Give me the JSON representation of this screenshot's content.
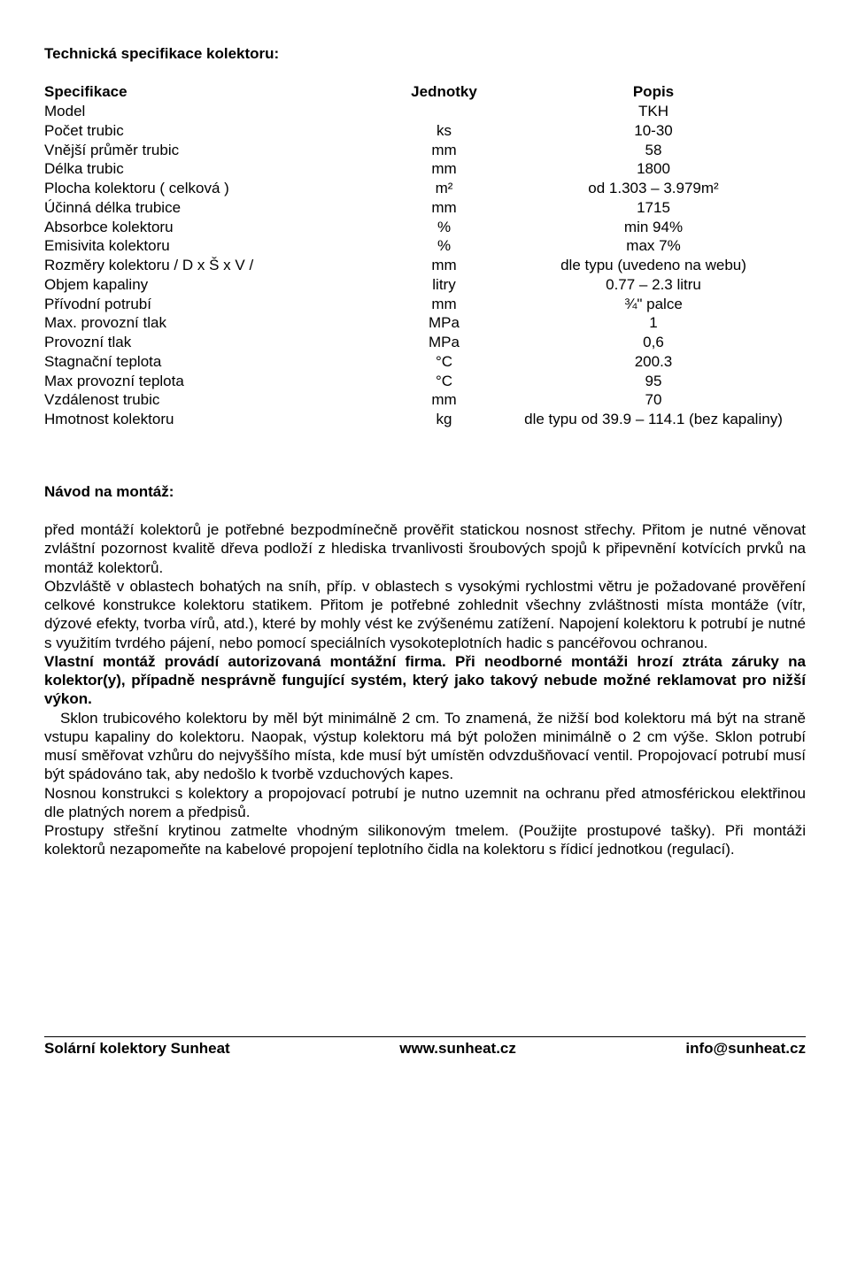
{
  "title": "Technická specifikace kolektoru:",
  "spec": {
    "head": {
      "c1": "Specifikace",
      "c2": "Jednotky",
      "c3": "Popis"
    },
    "rows": [
      {
        "c1": "Model",
        "c2": "",
        "c3": "TKH"
      },
      {
        "c1": "Počet trubic",
        "c2": "ks",
        "c3": "10-30"
      },
      {
        "c1": "Vnější průměr trubic",
        "c2": "mm",
        "c3": "58"
      },
      {
        "c1": "Délka trubic",
        "c2": "mm",
        "c3": "1800"
      },
      {
        "c1": "Plocha kolektoru ( celková )",
        "c2": "m²",
        "c3": "od 1.303 – 3.979m²"
      },
      {
        "c1": "Účinná délka trubice",
        "c2": "mm",
        "c3": "1715"
      },
      {
        "c1": "Absorbce kolektoru",
        "c2": "%",
        "c3": "min 94%"
      },
      {
        "c1": "Emisivita kolektoru",
        "c2": "%",
        "c3": "max 7%"
      },
      {
        "c1": "Rozměry kolektoru / D x Š x V /",
        "c2": "mm",
        "c3": "dle typu (uvedeno na webu)"
      },
      {
        "c1": "Objem kapaliny",
        "c2": "litry",
        "c3": "0.77 – 2.3 litru"
      },
      {
        "c1": "Přívodní potrubí",
        "c2": "mm",
        "c3": "¾\" palce"
      },
      {
        "c1": "Max. provozní tlak",
        "c2": "MPa",
        "c3": "1"
      },
      {
        "c1": "Provozní tlak",
        "c2": "MPa",
        "c3": "0,6"
      },
      {
        "c1": "Stagnační teplota",
        "c2": "°C",
        "c3": "200.3"
      },
      {
        "c1": "Max provozní teplota",
        "c2": "°C",
        "c3": "95"
      },
      {
        "c1": "Vzdálenost trubic",
        "c2": "mm",
        "c3": "70"
      },
      {
        "c1": "Hmotnost kolektoru",
        "c2": "kg",
        "c3": "dle typu od 39.9 – 114.1 (bez kapaliny)"
      }
    ]
  },
  "section_title": "Návod na montáž:",
  "p1": "před montáží kolektorů je potřebné bezpodmínečně prověřit statickou nosnost střechy. Přitom je nutné věnovat zvláštní pozornost kvalitě dřeva podloží z hlediska trvanlivosti šroubových spojů k připevnění kotvících prvků na montáž kolektorů.",
  "p2": "Obzvláště v oblastech bohatých na sníh, příp. v oblastech s vysokými rychlostmi větru je požadované prověření celkové konstrukce kolektoru statikem. Přitom je potřebné zohlednit všechny zvláštnosti místa montáže (vítr, dýzové efekty, tvorba vírů, atd.), které by mohly vést ke zvýšenému zatížení. Napojení kolektoru k potrubí je nutné s využitím tvrdého pájení, nebo pomocí speciálních vysokoteplotních hadic s pancéřovou ochranou.",
  "p3_bold": "Vlastní montáž provádí autorizovaná montážní firma. Při neodborné montáži hrozí ztráta záruky na kolektor(y), případně nesprávně fungující systém, který jako takový nebude možné reklamovat pro nižší výkon.",
  "p4": "Sklon trubicového kolektoru by měl být minimálně 2 cm. To znamená, že nižší bod kolektoru má být na straně vstupu kapaliny do kolektoru. Naopak, výstup kolektoru má být položen minimálně o 2 cm výše. Sklon potrubí musí směřovat vzhůru do nejvyššího místa, kde musí být umístěn odvzdušňovací ventil. Propojovací potrubí musí být spádováno tak, aby nedošlo k tvorbě vzduchových kapes.",
  "p5": "Nosnou konstrukci s kolektory a propojovací potrubí je nutno uzemnit na ochranu před atmosférickou elektřinou dle platných norem a předpisů.",
  "p6": "Prostupy střešní krytinou zatmelte vhodným silikonovým tmelem. (Použijte prostupové tašky). Při montáži kolektorů nezapomeňte na kabelové propojení teplotního čidla na kolektoru s řídicí jednotkou (regulací).",
  "footer": {
    "left": "Solární kolektory Sunheat",
    "center": "www.sunheat.cz",
    "right": "info@sunheat.cz"
  }
}
